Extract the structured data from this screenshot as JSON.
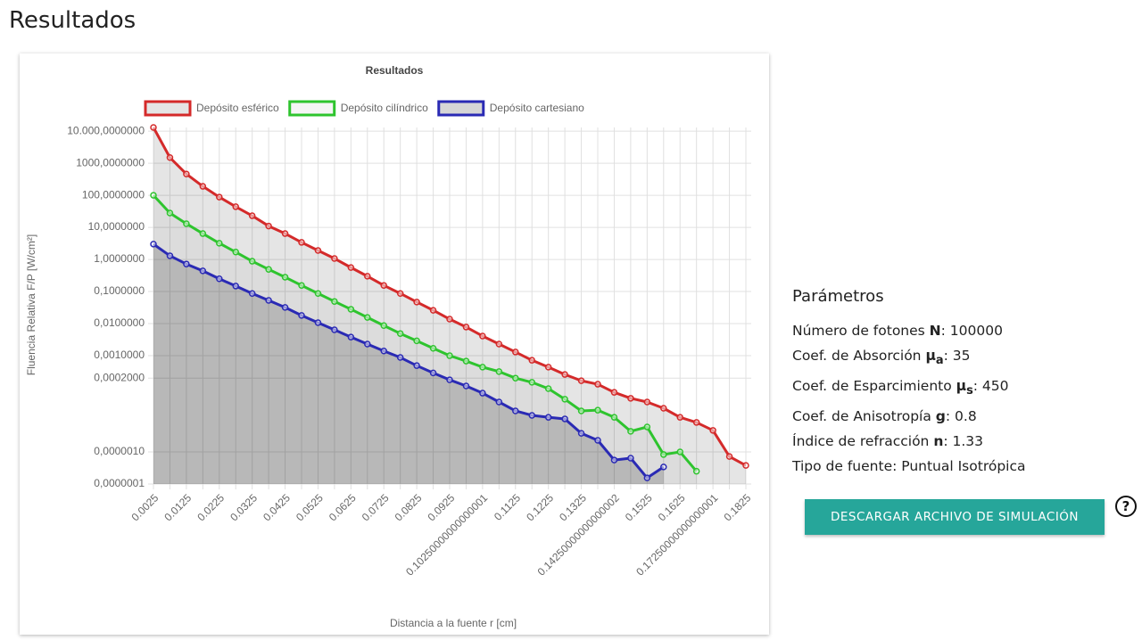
{
  "page_title": "Resultados",
  "chart_data": {
    "type": "line",
    "title": "Resultados",
    "x_label": "Distancia a la fuente r [cm]",
    "y_label": "Fluencia Relativa F/P [W/cm²]",
    "log_y": true,
    "grid": true,
    "fill": "origin",
    "legend": "top",
    "categories": [
      "0.0025",
      null,
      "0.0125",
      null,
      "0.0225",
      null,
      "0.0325",
      null,
      "0.0425",
      null,
      "0.0525",
      null,
      "0.0625",
      null,
      "0.0725",
      null,
      "0.0825",
      null,
      "0.0925",
      null,
      "0.10250000000000001",
      null,
      "0.1125",
      null,
      "0.1225",
      null,
      "0.1325",
      null,
      "0.14250000000000002",
      null,
      "0.1525",
      null,
      "0.1625",
      null,
      "0.17250000000000001",
      null,
      "0.1825"
    ],
    "ylim": [
      1e-07,
      13000
    ],
    "yticks": [
      {
        "value": 10000,
        "label": "10.000,0000000"
      },
      {
        "value": 1000,
        "label": "1000,0000000"
      },
      {
        "value": 100,
        "label": "100,0000000"
      },
      {
        "value": 10,
        "label": "10,0000000"
      },
      {
        "value": 1,
        "label": "1,0000000"
      },
      {
        "value": 0.1,
        "label": "0,1000000"
      },
      {
        "value": 0.01,
        "label": "0,0100000"
      },
      {
        "value": 0.001,
        "label": "0,0010000"
      },
      {
        "value": 0.0002,
        "label": "0,0002000"
      },
      {
        "value": 1e-06,
        "label": "0,0000010"
      },
      {
        "value": 1e-07,
        "label": "0,0000001"
      }
    ],
    "series": [
      {
        "name": "Depósito esférico",
        "color": "#d42a2a",
        "fill": "rgba(0,0,0,0.1)",
        "values": [
          13000,
          1500,
          460,
          190,
          88,
          44,
          23,
          11,
          6.4,
          3.4,
          1.9,
          1.07,
          0.56,
          0.3,
          0.155,
          0.087,
          0.047,
          0.026,
          0.0138,
          0.0078,
          0.0041,
          0.0023,
          0.0013,
          0.00072,
          0.00044,
          0.00026,
          0.000166,
          0.000129,
          7.2e-05,
          4.7e-05,
          3.6e-05,
          2.3e-05,
          1.2e-05,
          8.3e-06,
          4.7e-06,
          7.2e-07,
          3.8e-07
        ]
      },
      {
        "name": "Depósito cilíndrico",
        "color": "#2ec42e",
        "fill": "rgba(0,0,0,0.04)",
        "values": [
          100,
          28,
          13,
          6.4,
          3.2,
          1.7,
          0.88,
          0.49,
          0.28,
          0.155,
          0.087,
          0.049,
          0.028,
          0.0156,
          0.0087,
          0.0049,
          0.0029,
          0.0017,
          0.001,
          0.00068,
          0.00044,
          0.00032,
          0.0002,
          0.000148,
          9.4e-05,
          4.4e-05,
          1.9e-05,
          2e-05,
          1.2e-05,
          4.4e-06,
          6e-06,
          8.3e-07,
          1e-06,
          2.5e-07,
          null,
          null,
          null
        ]
      },
      {
        "name": "Depósito cartesiano",
        "color": "#2a2ab4",
        "fill": "rgba(0,0,0,0.16)",
        "values": [
          3,
          1.3,
          0.72,
          0.44,
          0.25,
          0.148,
          0.087,
          0.053,
          0.032,
          0.018,
          0.0107,
          0.0064,
          0.0038,
          0.0023,
          0.0014,
          0.00088,
          0.00049,
          0.00029,
          0.000177,
          0.000114,
          6.8e-05,
          3.6e-05,
          1.9e-05,
          1.38e-05,
          1.2e-05,
          1.07e-05,
          3.8e-06,
          2.3e-06,
          5.6e-07,
          6.4e-07,
          1.55e-07,
          3.4e-07,
          null,
          null,
          null,
          null,
          null
        ]
      }
    ]
  },
  "parameters": {
    "title": "Parámetros",
    "items": [
      {
        "label": "Número de fotones ",
        "symbol": "N",
        "value": ": 100000"
      },
      {
        "label": "Coef. de Absorción ",
        "symbol": "μ",
        "sub": "a",
        "value": ": 35"
      },
      {
        "label": "Coef. de Esparcimiento ",
        "symbol": "μ",
        "sub": "s",
        "value": ": 450"
      },
      {
        "label": "Coef. de Anisotropía ",
        "symbol": "g",
        "value": ": 0.8"
      },
      {
        "label": "Índice de refracción ",
        "symbol": "n",
        "value": ": 1.33"
      },
      {
        "label": "Tipo de fuente: Puntual Isotrópica"
      }
    ]
  },
  "download_button": "DESCARGAR ARCHIVO DE SIMULACIÓN",
  "help_icon": "?"
}
